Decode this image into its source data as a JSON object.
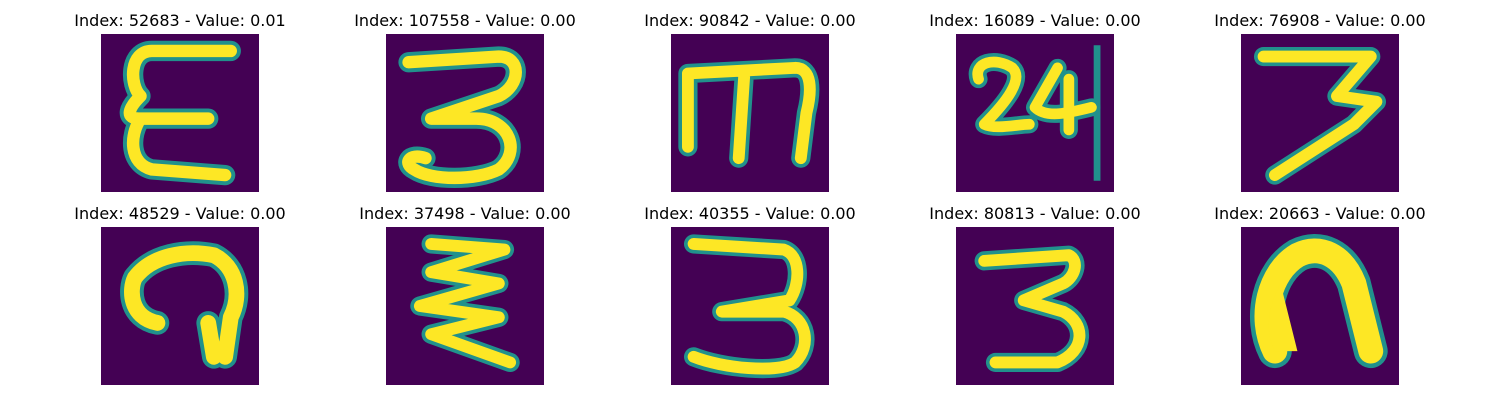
{
  "figure": {
    "panels": [
      {
        "title": "Index: 52683 - Value: 0.01",
        "glyph": "digit-3-mirrored"
      },
      {
        "title": "Index: 107558 - Value: 0.00",
        "glyph": "digit-3"
      },
      {
        "title": "Index: 90842 - Value: 0.00",
        "glyph": "digit-3-rotated"
      },
      {
        "title": "Index: 16089 - Value: 0.00",
        "glyph": "digits-24"
      },
      {
        "title": "Index: 76908 - Value: 0.00",
        "glyph": "digit-3-slanted"
      },
      {
        "title": "Index: 48529 - Value: 0.00",
        "glyph": "digit-3-rotated"
      },
      {
        "title": "Index: 37498 - Value: 0.00",
        "glyph": "digit-3-rotated"
      },
      {
        "title": "Index: 40355 - Value: 0.00",
        "glyph": "digit-3"
      },
      {
        "title": "Index: 80813 - Value: 0.00",
        "glyph": "digit-3"
      },
      {
        "title": "Index: 20663 - Value: 0.00",
        "glyph": "blob-rotated"
      }
    ],
    "colors": {
      "background": "#440154",
      "edge": "#21918c",
      "stroke": "#fde725",
      "edge_light": "#5ec962"
    }
  }
}
